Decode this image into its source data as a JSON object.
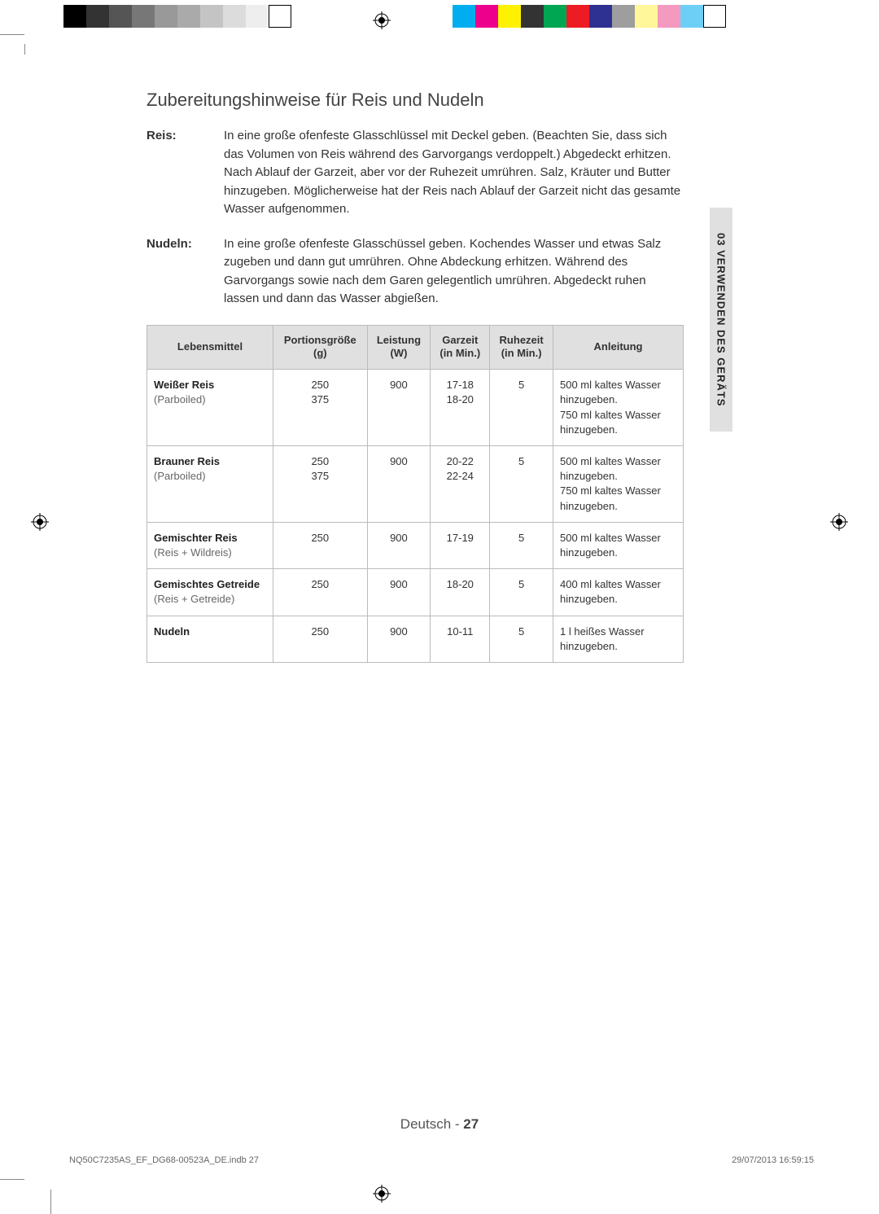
{
  "heading": "Zubereitungshinweise für Reis und Nudeln",
  "defs": [
    {
      "term": "Reis:",
      "body": "In eine große ofenfeste Glasschlüssel mit Deckel geben. (Beachten Sie, dass sich das Volumen von Reis während des Garvorgangs verdoppelt.) Abgedeckt erhitzen. Nach Ablauf der Garzeit, aber vor der Ruhezeit umrühren. Salz, Kräuter und Butter hinzugeben. Möglicherweise hat der Reis nach Ablauf der Garzeit nicht das gesamte Wasser aufgenommen."
    },
    {
      "term": "Nudeln:",
      "body": "In eine große ofenfeste Glasschüssel geben. Kochendes Wasser und etwas Salz zugeben und dann gut umrühren. Ohne Abdeckung erhitzen. Während des Garvorgangs sowie nach dem Garen gelegentlich umrühren. Abgedeckt ruhen lassen und dann das Wasser abgießen."
    }
  ],
  "table": {
    "columns": [
      "Lebensmittel",
      "Portionsgröße (g)",
      "Leistung (W)",
      "Garzeit (in Min.)",
      "Ruhezeit (in Min.)",
      "Anleitung"
    ],
    "rows": [
      {
        "food_main": "Weißer Reis",
        "food_sub": "(Parboiled)",
        "portion": "250\n375",
        "power": "900",
        "cook": "17-18\n18-20",
        "rest": "5",
        "inst": "500 ml kaltes Wasser hinzugeben.\n750 ml kaltes Wasser hinzugeben."
      },
      {
        "food_main": "Brauner Reis",
        "food_sub": "(Parboiled)",
        "portion": "250\n375",
        "power": "900",
        "cook": "20-22\n22-24",
        "rest": "5",
        "inst": "500 ml kaltes Wasser hinzugeben.\n750 ml kaltes Wasser hinzugeben."
      },
      {
        "food_main": "Gemischter Reis",
        "food_sub": "(Reis + Wildreis)",
        "portion": "250",
        "power": "900",
        "cook": "17-19",
        "rest": "5",
        "inst": "500 ml kaltes Wasser hinzugeben."
      },
      {
        "food_main": "Gemischtes Getreide",
        "food_sub": "(Reis + Getreide)",
        "portion": "250",
        "power": "900",
        "cook": "18-20",
        "rest": "5",
        "inst": "400 ml kaltes Wasser hinzugeben."
      },
      {
        "food_main": "Nudeln",
        "food_sub": "",
        "portion": "250",
        "power": "900",
        "cook": "10-11",
        "rest": "5",
        "inst": "1 l heißes Wasser hinzugeben."
      }
    ]
  },
  "sideTab": "03  VERWENDEN DES GERÄTS",
  "footer": {
    "lang": "Deutsch - ",
    "page": "27"
  },
  "pageMeta": {
    "file": "NQ50C7235AS_EF_DG68-00523A_DE.indb   27",
    "date": "29/07/2013   16:59:15"
  },
  "colorBars": {
    "left": [
      "#000000",
      "#333333",
      "#555555",
      "#777777",
      "#999999",
      "#aaaaaa",
      "#c4c4c4",
      "#dcdcdc",
      "#eeeeee",
      "#ffffff"
    ],
    "right": [
      "#00aeef",
      "#ec008c",
      "#fff200",
      "#333333",
      "#00a651",
      "#ed1c24",
      "#2e3192",
      "#9e9e9e",
      "#fff799",
      "#f49ac1",
      "#6dcff6",
      "#ffffff"
    ]
  }
}
